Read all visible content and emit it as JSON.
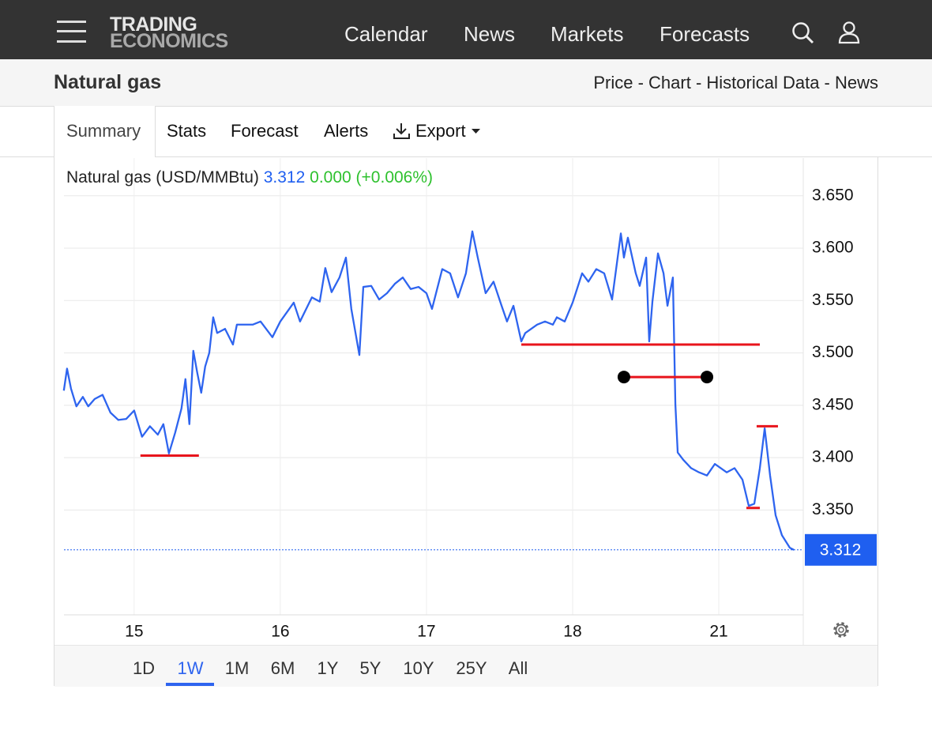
{
  "nav": {
    "logo_top": "TRADING",
    "logo_bottom": "ECONOMICS",
    "links": [
      "Calendar",
      "News",
      "Markets",
      "Forecasts"
    ]
  },
  "header": {
    "title": "Natural gas",
    "links": "Price - Chart - Historical Data - News"
  },
  "tabs": [
    "Summary",
    "Stats",
    "Forecast",
    "Alerts",
    "Export"
  ],
  "chart_data": {
    "type": "line",
    "title": "Natural gas (USD/MMBtu)",
    "last": 3.312,
    "change": "0.000",
    "change_pct": "(+0.006%)",
    "color": "#2e64ef",
    "last_color": "#1f5ff0",
    "change_color": "#2ec12e",
    "x": [
      -0.481,
      -0.459,
      -0.432,
      -0.395,
      -0.351,
      -0.314,
      -0.27,
      -0.216,
      -0.162,
      -0.108,
      -0.054,
      0,
      0.054,
      0.108,
      0.162,
      0.2,
      0.238,
      0.281,
      0.324,
      0.351,
      0.378,
      0.405,
      0.432,
      0.459,
      0.486,
      0.514,
      0.541,
      0.568,
      0.622,
      0.676,
      0.703,
      0.811,
      0.865,
      0.946,
      1.0,
      1.092,
      1.135,
      1.216,
      1.27,
      1.308,
      1.351,
      1.405,
      1.449,
      1.486,
      1.541,
      1.568,
      1.622,
      1.676,
      1.73,
      1.784,
      1.838,
      1.892,
      1.946,
      2.0,
      2.038,
      2.108,
      2.162,
      2.216,
      2.27,
      2.314,
      2.351,
      2.405,
      2.459,
      2.514,
      2.551,
      2.595,
      2.649,
      2.676,
      2.757,
      2.811,
      2.865,
      2.892,
      2.946,
      3.0,
      3.065,
      3.108,
      3.162,
      3.216,
      3.27,
      3.33,
      3.351,
      3.378,
      3.432,
      3.459,
      3.503,
      3.524,
      3.546,
      3.584,
      3.622,
      3.649,
      3.686,
      3.703,
      3.719,
      3.757,
      3.811,
      3.865,
      3.919,
      3.973,
      4.054,
      4.108,
      4.162,
      4.205,
      4.243,
      4.281,
      4.314,
      4.351,
      4.389,
      4.432,
      4.486,
      4.514
    ],
    "values": [
      3.464,
      3.485,
      3.466,
      3.449,
      3.458,
      3.449,
      3.456,
      3.46,
      3.443,
      3.436,
      3.437,
      3.445,
      3.42,
      3.43,
      3.422,
      3.432,
      3.404,
      3.424,
      3.447,
      3.475,
      3.432,
      3.502,
      3.481,
      3.462,
      3.487,
      3.5,
      3.534,
      3.519,
      3.523,
      3.508,
      3.527,
      3.527,
      3.53,
      3.515,
      3.53,
      3.548,
      3.53,
      3.553,
      3.549,
      3.581,
      3.558,
      3.572,
      3.591,
      3.542,
      3.498,
      3.563,
      3.564,
      3.551,
      3.557,
      3.566,
      3.572,
      3.561,
      3.563,
      3.557,
      3.542,
      3.58,
      3.576,
      3.553,
      3.576,
      3.616,
      3.591,
      3.557,
      3.568,
      3.545,
      3.53,
      3.545,
      3.511,
      3.519,
      3.527,
      3.53,
      3.527,
      3.534,
      3.53,
      3.548,
      3.576,
      3.568,
      3.58,
      3.576,
      3.551,
      3.614,
      3.591,
      3.61,
      3.576,
      3.564,
      3.591,
      3.511,
      3.549,
      3.595,
      3.576,
      3.545,
      3.572,
      3.451,
      3.405,
      3.398,
      3.39,
      3.386,
      3.383,
      3.394,
      3.386,
      3.39,
      3.379,
      3.354,
      3.356,
      3.39,
      3.428,
      3.383,
      3.345,
      3.326,
      3.314,
      3.312
    ],
    "xlim": [
      -0.48,
      4.578
    ],
    "xticks": [
      {
        "value": 0,
        "label": "15"
      },
      {
        "value": 1,
        "label": "16"
      },
      {
        "value": 2,
        "label": "17"
      },
      {
        "value": 3,
        "label": "18"
      },
      {
        "value": 4,
        "label": "21"
      }
    ],
    "ylim": [
      3.25,
      3.686
    ],
    "yticks": [
      {
        "value": 3.35,
        "label": "3.350"
      },
      {
        "value": 3.4,
        "label": "3.400"
      },
      {
        "value": 3.45,
        "label": "3.450"
      },
      {
        "value": 3.5,
        "label": "3.500"
      },
      {
        "value": 3.55,
        "label": "3.550"
      },
      {
        "value": 3.6,
        "label": "3.600"
      },
      {
        "value": 3.65,
        "label": "3.650"
      }
    ],
    "grid": true,
    "drawings": [
      {
        "x": [
          0.043,
          0.443
        ],
        "y": 3.402,
        "color": "#e8141c"
      },
      {
        "x": [
          2.649,
          4.281
        ],
        "y": 3.508,
        "color": "#e8141c"
      },
      {
        "x": [
          3.351,
          3.919
        ],
        "y": 3.477,
        "color": "#e8141c",
        "endpoints": true
      },
      {
        "x": [
          4.189,
          4.281
        ],
        "y": 3.352,
        "color": "#e8141c"
      },
      {
        "x": [
          4.259,
          4.405
        ],
        "y": 3.43,
        "color": "#e8141c"
      }
    ]
  },
  "ranges": [
    "1D",
    "1W",
    "1M",
    "6M",
    "1Y",
    "5Y",
    "10Y",
    "25Y",
    "All"
  ],
  "active_range": 1
}
